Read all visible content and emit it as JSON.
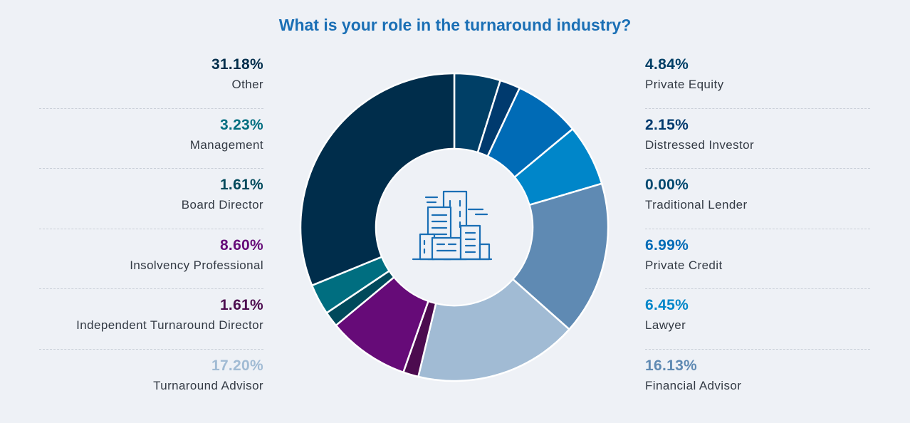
{
  "chart_data": {
    "type": "pie",
    "title": "What is your role in the turnaround industry?",
    "segments": [
      {
        "label": "Private Equity",
        "value": 4.84,
        "value_label": "4.84%",
        "color": "#003f66",
        "side": "right"
      },
      {
        "label": "Distressed Investor",
        "value": 2.15,
        "value_label": "2.15%",
        "color": "#003a6e",
        "side": "right"
      },
      {
        "label": "Traditional Lender",
        "value": 0.0,
        "value_label": "0.00%",
        "color": "#00486f",
        "side": "right"
      },
      {
        "label": "Private Credit",
        "value": 6.99,
        "value_label": "6.99%",
        "color": "#006bb6",
        "side": "right"
      },
      {
        "label": "Lawyer",
        "value": 6.45,
        "value_label": "6.45%",
        "color": "#0086c9",
        "side": "right"
      },
      {
        "label": "Financial Advisor",
        "value": 16.13,
        "value_label": "16.13%",
        "color": "#5f8ab3",
        "side": "right"
      },
      {
        "label": "Turnaround Advisor",
        "value": 17.2,
        "value_label": "17.20%",
        "color": "#a1bbd4",
        "side": "left"
      },
      {
        "label": "Independent Turnaround Director",
        "value": 1.61,
        "value_label": "1.61%",
        "color": "#4c0b4f",
        "side": "left"
      },
      {
        "label": "Insolvency Professional",
        "value": 8.6,
        "value_label": "8.60%",
        "color": "#660b78",
        "side": "left"
      },
      {
        "label": "Board Director",
        "value": 1.61,
        "value_label": "1.61%",
        "color": "#00495b",
        "side": "left"
      },
      {
        "label": "Management",
        "value": 3.23,
        "value_label": "3.23%",
        "color": "#006e80",
        "side": "left"
      },
      {
        "label": "Other",
        "value": 31.18,
        "value_label": "31.18%",
        "color": "#002d4b",
        "side": "left"
      }
    ],
    "left_order": [
      "Other",
      "Management",
      "Board Director",
      "Insolvency Professional",
      "Independent Turnaround Director",
      "Turnaround Advisor"
    ],
    "right_order": [
      "Private Equity",
      "Distressed Investor",
      "Traditional Lender",
      "Private Credit",
      "Lawyer",
      "Financial Advisor"
    ],
    "center_icon": "office-buildings-icon",
    "colors": {
      "title": "#1a6fb5",
      "background": "#eef1f6",
      "icon": "#1a6fb5",
      "inner_hole": "#eef1f6",
      "separator": "#c9cfd8"
    }
  }
}
